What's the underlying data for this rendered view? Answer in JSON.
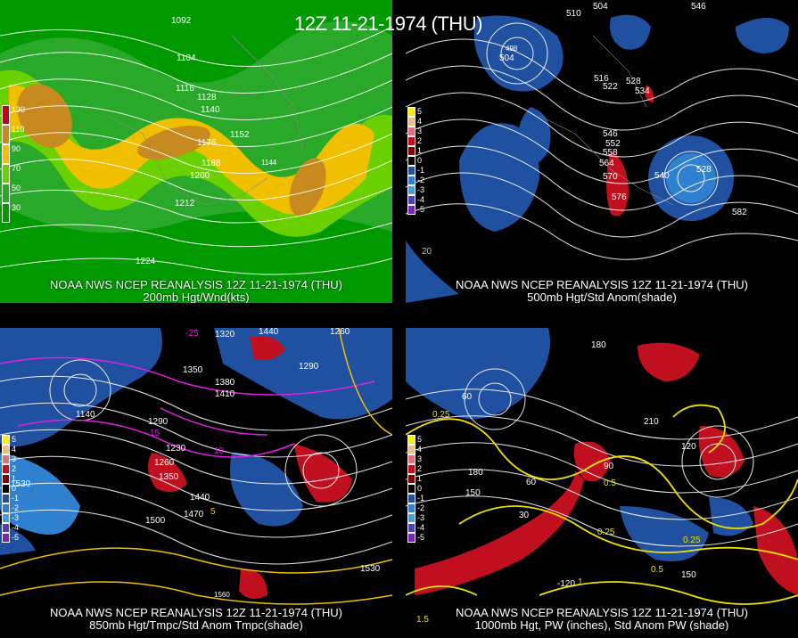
{
  "header": {
    "title": "12Z 11-21-1974 (THU)"
  },
  "panels": [
    {
      "id": "p200",
      "line1": "NOAA NWS NCEP REANALYSIS 12Z 11-21-1974 (THU)",
      "line2": "200mb Hgt/Wnd(kts)",
      "legend_labels": [
        "130",
        "110",
        "90",
        "70",
        "50",
        "30"
      ],
      "legend_colors": [
        "#c40018",
        "#c68a1e",
        "#f0c000",
        "#6ad000",
        "#2aa82a",
        "#009a00"
      ],
      "contour_labels": [
        "1092",
        "1104",
        "1116",
        "1128",
        "1140",
        "1152",
        "1176",
        "1188",
        "1200",
        "1212",
        "1224",
        "1144"
      ]
    },
    {
      "id": "p500",
      "line1": "NOAA NWS NCEP REANALYSIS 12Z 11-21-1974 (THU)",
      "line2": "500mb Hgt/Std Anom(shade)",
      "legend_labels": [
        "5",
        "4",
        "3",
        "2",
        "1",
        "0",
        "-1",
        "-2",
        "-3",
        "-4",
        "-5"
      ],
      "legend_colors": [
        "#f7f000",
        "#e8c080",
        "#e07080",
        "#c01020",
        "#800000",
        "#000000",
        "#2050a0",
        "#3080d0",
        "#40a0e0",
        "#5040b0",
        "#8020c0"
      ],
      "contour_labels": [
        "510",
        "504",
        "546",
        "504",
        "498",
        "516",
        "522",
        "528",
        "534",
        "546",
        "552",
        "558",
        "564",
        "570",
        "576",
        "540",
        "528",
        "582",
        "20"
      ]
    },
    {
      "id": "p850",
      "line1": "NOAA NWS NCEP REANALYSIS 12Z 11-21-1974 (THU)",
      "line2": "850mb Hgt/Tmpc/Std Anom Tmpc(shade)",
      "legend_labels": [
        "5",
        "4",
        "3",
        "2",
        "1",
        "0",
        "-1",
        "-2",
        "-3",
        "-4",
        "-5"
      ],
      "legend_colors": [
        "#f7f000",
        "#e8c080",
        "#e07080",
        "#c01020",
        "#800000",
        "#000000",
        "#2050a0",
        "#3080d0",
        "#40a0e0",
        "#5040b0",
        "#8020c0"
      ],
      "contour_labels": [
        "1440",
        "1260",
        "1320",
        "1350",
        "1290",
        "1380",
        "1410",
        "1140",
        "1290",
        "1230",
        "1260",
        "1350",
        "1440",
        "1470",
        "1500",
        "1530",
        "1560",
        "1530",
        "-25",
        "15",
        "10",
        "5"
      ]
    },
    {
      "id": "p1000",
      "line1": "NOAA NWS NCEP REANALYSIS 12Z 11-21-1974 (THU)",
      "line2": "1000mb Hgt, PW (inches), Std Anom PW (shade)",
      "legend_labels": [
        "5",
        "4",
        "3",
        "2",
        "1",
        "0",
        "-1",
        "-2",
        "-3",
        "-4",
        "-5"
      ],
      "legend_colors": [
        "#f7f000",
        "#e8c080",
        "#e07080",
        "#c01020",
        "#800000",
        "#000000",
        "#2050a0",
        "#3080d0",
        "#40a0e0",
        "#5040b0",
        "#8020c0"
      ],
      "contour_labels": [
        "180",
        "60",
        "120",
        "150",
        "180",
        "210",
        "30",
        "60",
        "90",
        "0.25",
        "0.5",
        "0.25",
        "1",
        "1.5",
        "-120",
        "150",
        "0.25",
        "0.5"
      ]
    }
  ]
}
